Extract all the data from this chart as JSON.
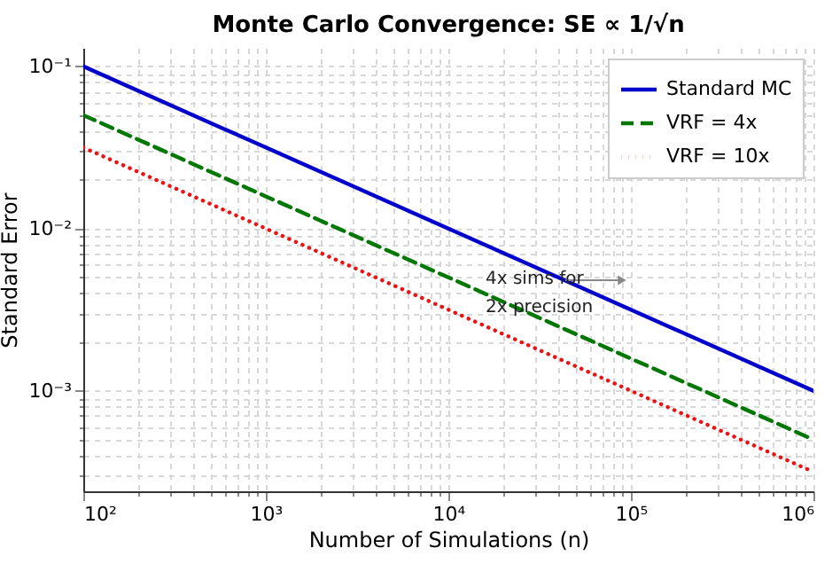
{
  "chart_data": {
    "type": "line",
    "title": "Monte Carlo Convergence: SE ∝ 1/√n",
    "xlabel": "Number of Simulations (n)",
    "ylabel": "Standard Error",
    "x": [
      100,
      1000,
      10000,
      100000,
      1000000
    ],
    "series": [
      {
        "name": "Standard MC",
        "color": "#0000cc",
        "line_style": "solid",
        "values": [
          0.1,
          0.0316,
          0.01,
          0.00316,
          0.001
        ]
      },
      {
        "name": "VRF = 4x",
        "color": "#007700",
        "line_style": "dashed",
        "values": [
          0.05,
          0.0158,
          0.005,
          0.00158,
          0.0005
        ]
      },
      {
        "name": "VRF = 10x",
        "color": "#ee1111",
        "line_style": "dotted",
        "values": [
          0.0316,
          0.01,
          0.00316,
          0.001,
          0.000316
        ]
      }
    ],
    "log": "xy",
    "xlim": [
      100,
      1000000
    ],
    "ylim": [
      0.00024,
      0.13
    ],
    "xticks": [
      {
        "value": 100,
        "label": "10²"
      },
      {
        "value": 1000,
        "label": "10³"
      },
      {
        "value": 10000,
        "label": "10⁴"
      },
      {
        "value": 100000,
        "label": "10⁵"
      },
      {
        "value": 1000000,
        "label": "10⁶"
      }
    ],
    "yticks": [
      {
        "value": 0.001,
        "label": "10⁻³"
      },
      {
        "value": 0.01,
        "label": "10⁻²"
      },
      {
        "value": 0.1,
        "label": "10⁻¹"
      }
    ],
    "grid": true,
    "legend": "top right",
    "annotations": [
      "4x sims for\n2x precision"
    ]
  }
}
